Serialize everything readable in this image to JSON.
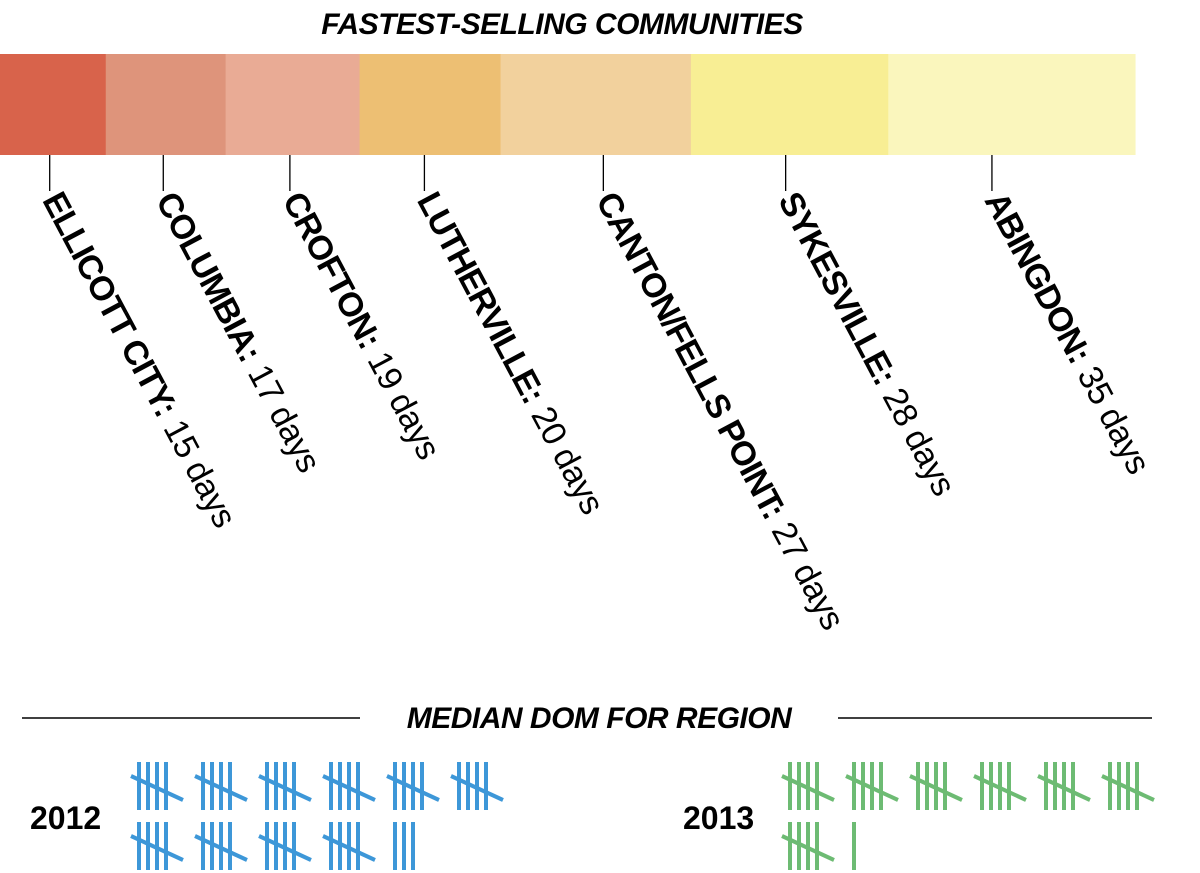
{
  "chart_data": {
    "type": "bar",
    "title": "FASTEST-SELLING COMMUNITIES",
    "unit_label": "days",
    "categories": [
      "ELLICOTT CITY:",
      "COLUMBIA:",
      "CROFTON:",
      "LUTHERVILLE:",
      "CANTON/FELLS POINT:",
      "SYKESVILLE:",
      "ABINGDON:"
    ],
    "values": [
      15,
      17,
      19,
      20,
      27,
      28,
      35
    ],
    "value_labels": [
      "15 days",
      "17 days",
      "19 days",
      "20 days",
      "27 days",
      "28 days",
      "35 days"
    ],
    "colors": [
      "#d8634b",
      "#de947b",
      "#e9ab95",
      "#edbf73",
      "#f2d19d",
      "#f8ee94",
      "#faf6bd"
    ],
    "grid": false,
    "legend": "none"
  },
  "median": {
    "title": "MEDIAN DOM FOR REGION",
    "groups": [
      {
        "year": "2012",
        "count": 53,
        "color": "#3d97d8"
      },
      {
        "year": "2013",
        "count": 36,
        "color": "#6dbb73"
      }
    ]
  }
}
